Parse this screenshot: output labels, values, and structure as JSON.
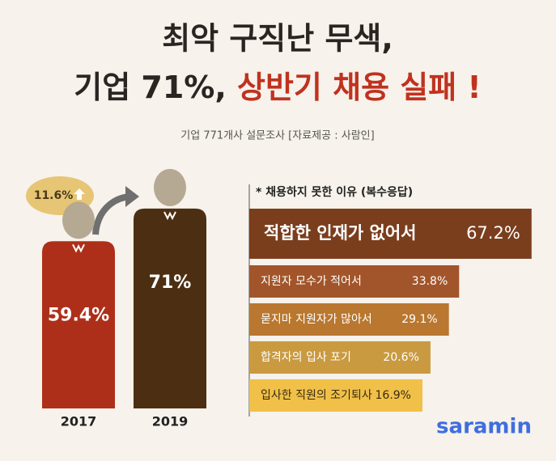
{
  "header": {
    "title_line1": "최악 구직난 무색,",
    "title_line2_black": "기업 71%, ",
    "title_line2_red": "상반기 채용 실패 !",
    "subtitle": "기업 771개사 설문조사 [자료제공 : 사람인]"
  },
  "chart_data": [
    {
      "type": "person",
      "categories": [
        "2017",
        "2019"
      ],
      "values": [
        59.4,
        71
      ],
      "value_labels": [
        "59.4%",
        "71%"
      ],
      "colors": [
        "#ae2f19",
        "#4c2f12"
      ],
      "annotation": "11.6%"
    },
    {
      "type": "hbar",
      "title": "* 채용하지 못한 이유 (복수응답)",
      "categories": [
        "적합한 인재가 없어서",
        "지원자 모수가 적어서",
        "묻지마 지원자가 많아서",
        "합격자의 입사 포기",
        "입사한 직원의 조기퇴사"
      ],
      "values": [
        67.2,
        33.8,
        29.1,
        20.6,
        16.9
      ],
      "value_labels": [
        "67.2%",
        "33.8%",
        "29.1%",
        "20.6%",
        "16.9%"
      ],
      "colors": [
        "#7b3e1d",
        "#a2552a",
        "#b9772f",
        "#c99a40",
        "#f0c049"
      ]
    }
  ],
  "brand": "saramin"
}
